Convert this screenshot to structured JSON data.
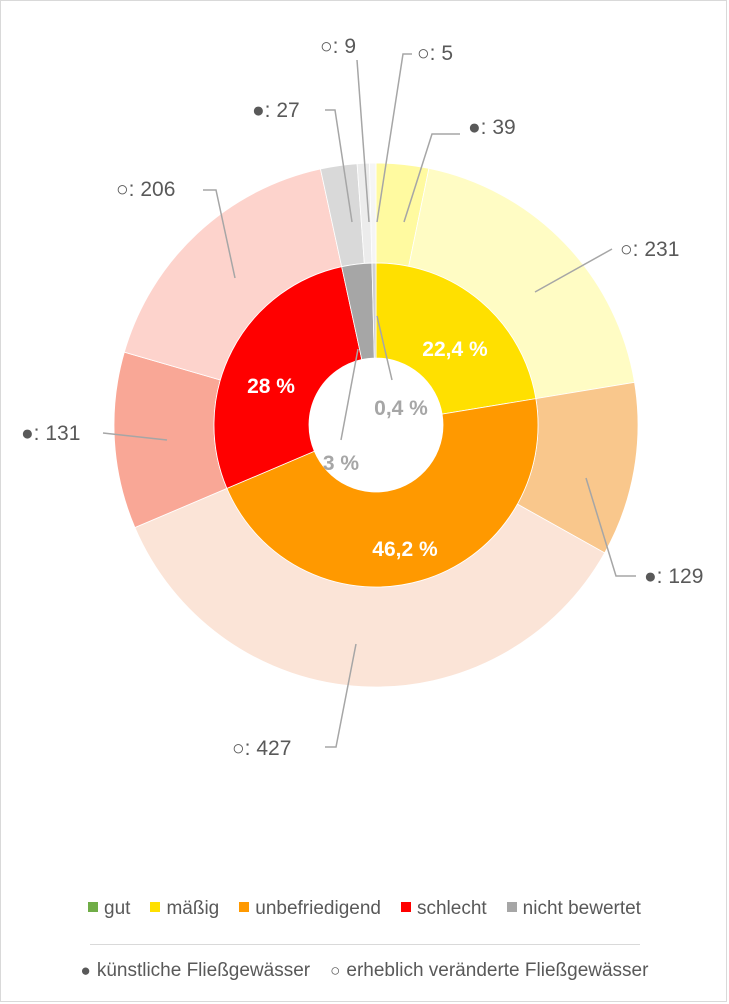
{
  "chart_data": {
    "type": "pie",
    "subtype": "nested-donut",
    "inner_ring": {
      "categories": [
        "mäßig",
        "unbefriedigend",
        "schlecht",
        "nicht bewertet",
        "gut"
      ],
      "values": [
        22.4,
        46.2,
        28,
        3,
        0.4
      ],
      "labels": [
        "22,4 %",
        "46,2 %",
        "28 %",
        "3 %",
        "0,4 %"
      ],
      "colors": [
        "#ffe000",
        "#ff9900",
        "#ff0000",
        "#a6a6a6",
        "#cfcfcf"
      ]
    },
    "outer_ring": {
      "segments": [
        {
          "category": "mäßig",
          "type": "künstliche Fließgewässer",
          "value": 39,
          "label": "●: 39",
          "color": "#fffaa0"
        },
        {
          "category": "mäßig",
          "type": "erheblich veränderte Fließgewässer",
          "value": 231,
          "label": "○: 231",
          "color": "#fffcc4"
        },
        {
          "category": "unbefriedigend",
          "type": "künstliche Fließgewässer",
          "value": 129,
          "label": "●: 129",
          "color": "#f9c78c"
        },
        {
          "category": "unbefriedigend",
          "type": "erheblich veränderte Fließgewässer",
          "value": 427,
          "label": "○: 427",
          "color": "#fbe4d7"
        },
        {
          "category": "schlecht",
          "type": "künstliche Fließgewässer",
          "value": 131,
          "label": "●: 131",
          "color": "#f9a796"
        },
        {
          "category": "schlecht",
          "type": "erheblich veränderte Fließgewässer",
          "value": 206,
          "label": "○: 206",
          "color": "#fdd3cc"
        },
        {
          "category": "nicht bewertet",
          "type": "künstliche Fließgewässer",
          "value": 27,
          "label": "●: 27",
          "color": "#d9d9d9"
        },
        {
          "category": "nicht bewertet",
          "type": "erheblich veränderte Fließgewässer",
          "value": 9,
          "label": "○: 9",
          "color": "#ececec"
        },
        {
          "category": "gut",
          "type": "erheblich veränderte Fließgewässer",
          "value": 5,
          "label": "○: 5",
          "color": "#f5f5f5"
        }
      ]
    },
    "legend": {
      "categories": [
        {
          "label": "gut",
          "color": "#70ad47"
        },
        {
          "label": "mäßig",
          "color": "#ffe000"
        },
        {
          "label": "unbefriedigend",
          "color": "#ff9900"
        },
        {
          "label": "schlecht",
          "color": "#ff0000"
        },
        {
          "label": "nicht bewertet",
          "color": "#a6a6a6"
        }
      ],
      "types": [
        {
          "marker": "●",
          "label": "künstliche Fließgewässer"
        },
        {
          "marker": "○",
          "label": "erheblich veränderte Fließgewässer"
        }
      ],
      "position": "bottom"
    }
  }
}
